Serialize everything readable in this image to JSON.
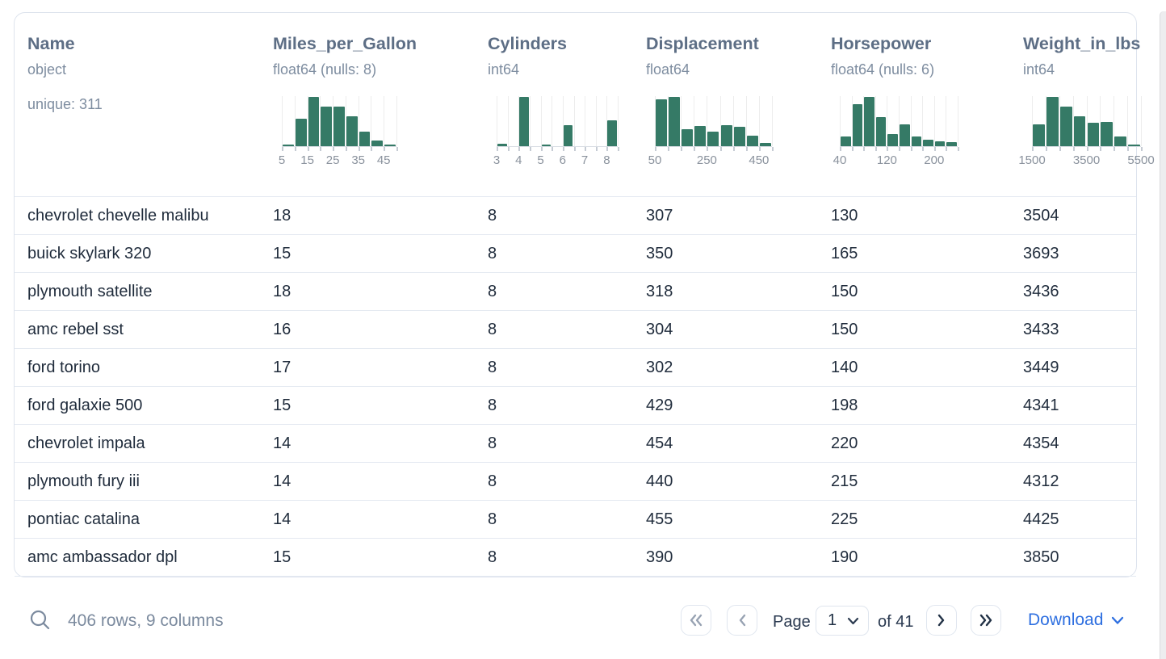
{
  "table": {
    "columns": [
      {
        "name": "Name",
        "type": "object",
        "meta": "unique: 311"
      },
      {
        "name": "Miles_per_Gallon",
        "type": "float64 (nulls: 8)",
        "meta": ""
      },
      {
        "name": "Cylinders",
        "type": "int64",
        "meta": ""
      },
      {
        "name": "Displacement",
        "type": "float64",
        "meta": ""
      },
      {
        "name": "Horsepower",
        "type": "float64 (nulls: 6)",
        "meta": ""
      },
      {
        "name": "Weight_in_lbs",
        "type": "int64",
        "meta": ""
      }
    ],
    "rows": [
      [
        "chevrolet chevelle malibu",
        "18",
        "8",
        "307",
        "130",
        "3504"
      ],
      [
        "buick skylark 320",
        "15",
        "8",
        "350",
        "165",
        "3693"
      ],
      [
        "plymouth satellite",
        "18",
        "8",
        "318",
        "150",
        "3436"
      ],
      [
        "amc rebel sst",
        "16",
        "8",
        "304",
        "150",
        "3433"
      ],
      [
        "ford torino",
        "17",
        "8",
        "302",
        "140",
        "3449"
      ],
      [
        "ford galaxie 500",
        "15",
        "8",
        "429",
        "198",
        "4341"
      ],
      [
        "chevrolet impala",
        "14",
        "8",
        "454",
        "220",
        "4354"
      ],
      [
        "plymouth fury iii",
        "14",
        "8",
        "440",
        "215",
        "4312"
      ],
      [
        "pontiac catalina",
        "14",
        "8",
        "455",
        "225",
        "4425"
      ],
      [
        "amc ambassador dpl",
        "15",
        "8",
        "390",
        "190",
        "3850"
      ]
    ]
  },
  "chart_data": [
    {
      "type": "histogram",
      "column": "Miles_per_Gallon",
      "x_domain": [
        5,
        50
      ],
      "bin_width": 5,
      "bars_rel_height_pct": [
        3,
        55,
        100,
        80,
        80,
        61,
        30,
        12,
        3
      ],
      "tick_labels": [
        "5",
        "15",
        "25",
        "35",
        "45"
      ],
      "tick_boundary_indices": [
        0,
        2,
        4,
        6,
        8
      ],
      "bar_color": "#357a66"
    },
    {
      "type": "histogram",
      "column": "Cylinders",
      "x_domain": [
        3,
        8.5
      ],
      "bin_width": 0.5,
      "bars_rel_height_pct": [
        5,
        0,
        100,
        0,
        3,
        0,
        42,
        0,
        0,
        0,
        53
      ],
      "tick_labels": [
        "3",
        "4",
        "5",
        "6",
        "7",
        "8"
      ],
      "tick_boundary_indices": [
        0,
        2,
        4,
        6,
        8,
        10
      ],
      "bar_color": "#357a66"
    },
    {
      "type": "histogram",
      "column": "Displacement",
      "x_domain": [
        50,
        500
      ],
      "bin_width": 50,
      "bars_rel_height_pct": [
        95,
        100,
        34,
        41,
        30,
        43,
        39,
        21,
        7
      ],
      "tick_labels": [
        "50",
        "250",
        "450"
      ],
      "tick_boundary_indices": [
        0,
        4,
        8
      ],
      "bar_color": "#357a66"
    },
    {
      "type": "histogram",
      "column": "Horsepower",
      "x_domain": [
        40,
        240
      ],
      "bin_width": 20,
      "bars_rel_height_pct": [
        20,
        85,
        100,
        59,
        25,
        44,
        20,
        13,
        10,
        8
      ],
      "tick_labels": [
        "40",
        "120",
        "200"
      ],
      "tick_boundary_indices": [
        0,
        4,
        8
      ],
      "bar_color": "#357a66"
    },
    {
      "type": "histogram",
      "column": "Weight_in_lbs",
      "x_domain": [
        1500,
        5500
      ],
      "bin_width": 500,
      "bars_rel_height_pct": [
        44,
        100,
        81,
        60,
        47,
        50,
        19,
        3
      ],
      "tick_labels": [
        "1500",
        "3500",
        "5500"
      ],
      "tick_boundary_indices": [
        0,
        4,
        8
      ],
      "bar_color": "#357a66"
    }
  ],
  "footer": {
    "status": "406 rows, 9 columns",
    "page_label": "Page",
    "page_value": "1",
    "of_label": "of 41",
    "download_label": "Download"
  },
  "colors": {
    "bar_green": "#357a66",
    "header_slate": "#5d6e85",
    "type_gray": "#7e8da0",
    "data_navy": "#1f2b3b",
    "link_blue": "#2e6fe0",
    "row_border": "#e4e9f1"
  }
}
